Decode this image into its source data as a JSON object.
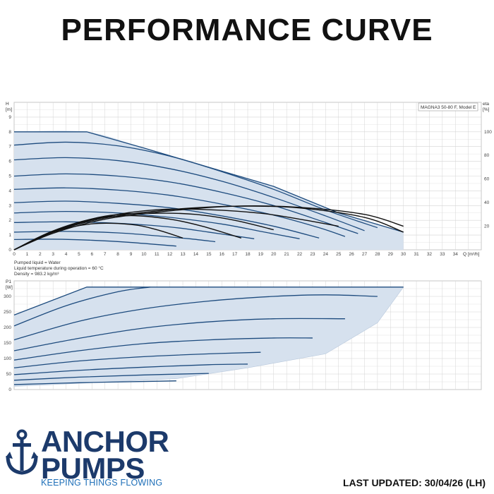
{
  "header": {
    "title": "PERFORMANCE CURVE"
  },
  "chart_data": [
    {
      "type": "line",
      "model_label": "MAGNA3 50-80 F, Model E",
      "xlabel": "Q [m³/h]",
      "ylabel": "H",
      "ylabel_unit": "[m]",
      "y2label": "eta",
      "y2label_unit": "[%]",
      "xlim": [
        0,
        36
      ],
      "ylim": [
        0,
        10
      ],
      "y2lim": [
        0,
        125
      ],
      "x_ticks": [
        0,
        1,
        2,
        3,
        4,
        5,
        6,
        7,
        8,
        9,
        10,
        11,
        12,
        13,
        14,
        15,
        16,
        17,
        18,
        19,
        20,
        21,
        22,
        23,
        24,
        25,
        26,
        27,
        28,
        29,
        30,
        31,
        32,
        33,
        34
      ],
      "y_ticks": [
        0,
        1,
        2,
        3,
        4,
        5,
        6,
        7,
        8,
        9
      ],
      "y2_ticks": [
        20,
        40,
        60,
        80,
        100
      ],
      "grid": true,
      "envelope": {
        "top": [
          [
            0,
            8
          ],
          [
            5.6,
            8
          ],
          [
            10,
            6.9
          ],
          [
            15,
            5.6
          ],
          [
            20,
            4.3
          ],
          [
            25,
            2.5
          ],
          [
            30,
            1.2
          ]
        ],
        "bottom": [
          [
            0,
            0
          ],
          [
            12.5,
            0
          ],
          [
            15.5,
            0
          ],
          [
            21,
            0
          ],
          [
            24,
            0
          ],
          [
            28,
            0
          ],
          [
            30,
            0
          ]
        ]
      },
      "series": [
        {
          "values": [
            [
              0,
              8
            ],
            [
              5.6,
              8
            ],
            [
              10,
              6.9
            ],
            [
              15,
              5.6
            ],
            [
              20,
              4.3
            ],
            [
              25,
              2.5
            ],
            [
              30,
              1.2
            ]
          ]
        },
        {
          "values": [
            [
              0,
              7.1
            ],
            [
              4,
              7.3
            ],
            [
              8,
              7.05
            ],
            [
              12,
              6.35
            ],
            [
              16,
              5.3
            ],
            [
              20,
              4.1
            ],
            [
              24,
              2.7
            ],
            [
              28,
              1.5
            ]
          ]
        },
        {
          "values": [
            [
              0,
              6.1
            ],
            [
              4,
              6.25
            ],
            [
              8,
              6.05
            ],
            [
              12,
              5.5
            ],
            [
              16,
              4.65
            ],
            [
              20,
              3.55
            ],
            [
              24,
              2.3
            ],
            [
              27,
              1.3
            ]
          ]
        },
        {
          "values": [
            [
              0,
              5.0
            ],
            [
              4,
              5.15
            ],
            [
              8,
              5.0
            ],
            [
              12,
              4.6
            ],
            [
              16,
              3.9
            ],
            [
              20,
              3.0
            ],
            [
              24,
              1.85
            ],
            [
              26.5,
              1.1
            ]
          ]
        },
        {
          "values": [
            [
              0,
              4.1
            ],
            [
              4,
              4.2
            ],
            [
              8,
              4.05
            ],
            [
              12,
              3.7
            ],
            [
              16,
              3.1
            ],
            [
              20,
              2.35
            ],
            [
              23.5,
              1.5
            ],
            [
              25.5,
              0.9
            ]
          ]
        },
        {
          "values": [
            [
              0,
              3.2
            ],
            [
              4,
              3.3
            ],
            [
              8,
              3.15
            ],
            [
              12,
              2.85
            ],
            [
              16,
              2.3
            ],
            [
              20,
              1.6
            ],
            [
              23.5,
              0.8
            ]
          ]
        },
        {
          "values": [
            [
              0,
              2.5
            ],
            [
              4,
              2.6
            ],
            [
              8,
              2.5
            ],
            [
              12,
              2.2
            ],
            [
              16,
              1.75
            ],
            [
              19,
              1.25
            ],
            [
              22,
              0.75
            ]
          ]
        },
        {
          "values": [
            [
              0,
              1.85
            ],
            [
              4,
              1.9
            ],
            [
              8,
              1.8
            ],
            [
              12,
              1.55
            ],
            [
              15,
              1.2
            ],
            [
              18.5,
              0.75
            ]
          ]
        },
        {
          "values": [
            [
              0,
              1.2
            ],
            [
              4,
              1.25
            ],
            [
              8,
              1.15
            ],
            [
              11,
              0.95
            ],
            [
              13.5,
              0.75
            ],
            [
              15.5,
              0.55
            ]
          ]
        },
        {
          "values": [
            [
              0,
              0.7
            ],
            [
              3,
              0.72
            ],
            [
              6,
              0.65
            ],
            [
              9,
              0.5
            ],
            [
              12.5,
              0.25
            ]
          ]
        }
      ],
      "eta_series": [
        {
          "values": [
            [
              0,
              0
            ],
            [
              3,
              14
            ],
            [
              7,
              26
            ],
            [
              12,
              33
            ],
            [
              17,
              37
            ],
            [
              22,
              36
            ],
            [
              27,
              30
            ],
            [
              30,
              20
            ]
          ]
        },
        {
          "values": [
            [
              0,
              0
            ],
            [
              3,
              15
            ],
            [
              7,
              27
            ],
            [
              12,
              34
            ],
            [
              17,
              37
            ],
            [
              22,
              35.5
            ],
            [
              27,
              27.5
            ],
            [
              30,
              15
            ]
          ]
        },
        {
          "values": [
            [
              0,
              0
            ],
            [
              3,
              15.5
            ],
            [
              7,
              28
            ],
            [
              11,
              34
            ],
            [
              15,
              34
            ],
            [
              19,
              31
            ],
            [
              22,
              26
            ],
            [
              25,
              20
            ]
          ]
        },
        {
          "values": [
            [
              0,
              0
            ],
            [
              3,
              16
            ],
            [
              7,
              28.5
            ],
            [
              11,
              31
            ],
            [
              14,
              30
            ],
            [
              17,
              25
            ],
            [
              20,
              17
            ]
          ]
        },
        {
          "values": [
            [
              0,
              0
            ],
            [
              3,
              16
            ],
            [
              6,
              26
            ],
            [
              9,
              29
            ],
            [
              12,
              26
            ],
            [
              14.5,
              20
            ],
            [
              17.5,
              10
            ]
          ]
        },
        {
          "values": [
            [
              0,
              0
            ],
            [
              3,
              15
            ],
            [
              6,
              22
            ],
            [
              9,
              21.5
            ],
            [
              11,
              17
            ],
            [
              13,
              10
            ]
          ]
        }
      ],
      "notes": [
        "Pumped liquid = Water",
        "Liquid temperature during operation = 60 °C",
        "Density = 983.2 kg/m³"
      ]
    },
    {
      "type": "line",
      "ylabel": "P1",
      "ylabel_unit": "[W]",
      "xlim": [
        0,
        36
      ],
      "ylim": [
        0,
        350
      ],
      "y_ticks": [
        0,
        50,
        100,
        150,
        200,
        250,
        300
      ],
      "grid": true,
      "envelope": {
        "top": [
          [
            0,
            240
          ],
          [
            5.6,
            330
          ],
          [
            30,
            330
          ]
        ],
        "bottom": [
          [
            0,
            10
          ],
          [
            12.5,
            35
          ],
          [
            18,
            70
          ],
          [
            24,
            115
          ],
          [
            28,
            215
          ],
          [
            30,
            330
          ]
        ]
      },
      "series": [
        {
          "values": [
            [
              0,
              240
            ],
            [
              5.6,
              330
            ],
            [
              30,
              330
            ]
          ]
        },
        {
          "values": [
            [
              0,
              205
            ],
            [
              4,
              270
            ],
            [
              8,
              315
            ],
            [
              10.5,
              330
            ]
          ]
        },
        {
          "values": [
            [
              0,
              160
            ],
            [
              5,
              220
            ],
            [
              10,
              260
            ],
            [
              15,
              285
            ],
            [
              20,
              300
            ],
            [
              24,
              305
            ],
            [
              28,
              300
            ]
          ]
        },
        {
          "values": [
            [
              0,
              125
            ],
            [
              5,
              165
            ],
            [
              10,
              198
            ],
            [
              15,
              218
            ],
            [
              20,
              228
            ],
            [
              25.5,
              228
            ]
          ]
        },
        {
          "values": [
            [
              0,
              95
            ],
            [
              5,
              125
            ],
            [
              10,
              148
            ],
            [
              15,
              160
            ],
            [
              20,
              166
            ],
            [
              23,
              166
            ]
          ]
        },
        {
          "values": [
            [
              0,
              70
            ],
            [
              5,
              92
            ],
            [
              10,
              106
            ],
            [
              15,
              115
            ],
            [
              19,
              120
            ]
          ]
        },
        {
          "values": [
            [
              0,
              48
            ],
            [
              5,
              62
            ],
            [
              10,
              72
            ],
            [
              15,
              80
            ],
            [
              18,
              82
            ]
          ]
        },
        {
          "values": [
            [
              0,
              30
            ],
            [
              5,
              40
            ],
            [
              10,
              47
            ],
            [
              15,
              52
            ]
          ]
        },
        {
          "values": [
            [
              0,
              16
            ],
            [
              5,
              22
            ],
            [
              10,
              26
            ],
            [
              12.5,
              28
            ]
          ]
        }
      ]
    }
  ],
  "branding": {
    "line1": "ANCHOR",
    "line2": "PUMPS",
    "tagline": "KEEPING THINGS FLOWING",
    "brand_color": "#1c3a6b",
    "tagline_color": "#1e6fb8",
    "icon": "anchor-icon"
  },
  "footer": {
    "last_updated": "LAST UPDATED: 30/04/26 (LH)"
  },
  "colors": {
    "fill": "#d6e1ee",
    "curve": "#1d4b7e",
    "eta": "#111111",
    "grid": "#d4d4d4"
  }
}
